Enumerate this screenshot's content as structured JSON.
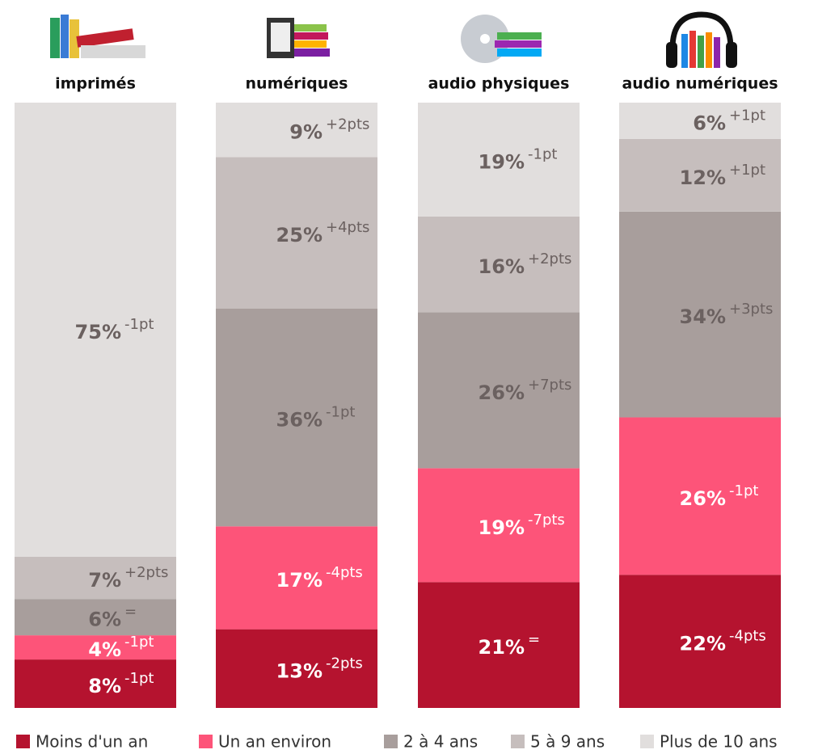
{
  "chart_data": {
    "type": "bar",
    "stacked": true,
    "categories": [
      "imprimés",
      "numériques",
      "audio physiques",
      "audio numériques"
    ],
    "series": [
      {
        "name": "Moins d'un an",
        "color": "#b5132f",
        "label_color": "#ffffff",
        "values": [
          8,
          13,
          21,
          22
        ],
        "value_labels": [
          "8%",
          "13%",
          "21%",
          "22%"
        ],
        "annotations": [
          "-1pt",
          "-2pts",
          "=",
          "-4pts"
        ]
      },
      {
        "name": "Un an environ",
        "color": "#fd5479",
        "label_color": "#ffffff",
        "values": [
          4,
          17,
          19,
          26
        ],
        "value_labels": [
          "4%",
          "17%",
          "19%",
          "26%"
        ],
        "annotations": [
          "-1pt",
          "-4pts",
          "-7pts",
          "-1pt"
        ]
      },
      {
        "name": "2 à 4 ans",
        "color": "#a89e9c",
        "label_color": "#6b6160",
        "values": [
          6,
          36,
          26,
          34
        ],
        "value_labels": [
          "6%",
          "36%",
          "26%",
          "34%"
        ],
        "annotations": [
          "=",
          "-1pt",
          "+7pts",
          "+3pts"
        ]
      },
      {
        "name": "5 à 9 ans",
        "color": "#c6bebd",
        "label_color": "#6b6160",
        "values": [
          7,
          25,
          16,
          12
        ],
        "value_labels": [
          "7%",
          "25%",
          "16%",
          "12%"
        ],
        "annotations": [
          "+2pts",
          "+4pts",
          "+2pts",
          "+1pt"
        ]
      },
      {
        "name": "Plus de 10 ans",
        "color": "#e1dedd",
        "label_color": "#6b6160",
        "values": [
          75,
          9,
          19,
          6
        ],
        "value_labels": [
          "75%",
          "9%",
          "19%",
          "6%"
        ],
        "annotations": [
          "-1pt",
          "+2pts",
          "-1pt",
          "+1pt"
        ]
      }
    ],
    "legend": "bottom"
  }
}
